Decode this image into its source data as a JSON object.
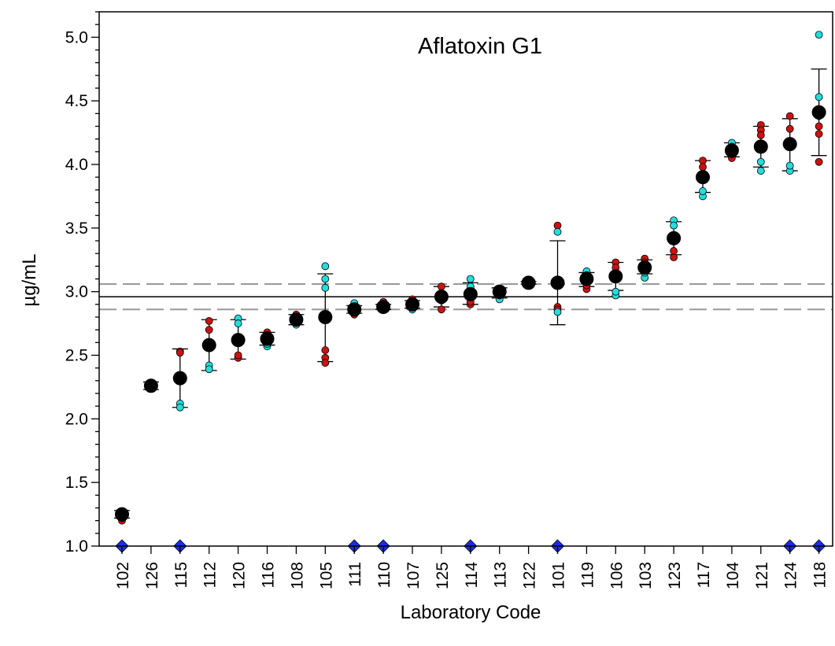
{
  "chart_data": {
    "type": "scatter",
    "title": "Aflatoxin G1",
    "xlabel": "Laboratory Code",
    "ylabel": "µg/mL",
    "ylim": [
      1.0,
      5.2
    ],
    "yticks": [
      "1.0",
      "1.5",
      "2.0",
      "2.5",
      "3.0",
      "3.5",
      "4.0",
      "4.5",
      "5.0"
    ],
    "grid": false,
    "colors": {
      "replicate_a": "#cc1111",
      "replicate_b": "#22dddd",
      "mean": "#000000",
      "flag": "#1a2cf0",
      "reference_line": "#000000",
      "reference_band": "#999999"
    },
    "reference": {
      "mean": 2.96,
      "lower": 2.86,
      "upper": 3.06
    },
    "labs": [
      {
        "code": "102",
        "mean": 1.25,
        "sd_low": 1.22,
        "sd_high": 1.28,
        "replicates_a": [
          1.2,
          1.22
        ],
        "replicates_b": [
          1.27,
          1.26
        ],
        "flagged": true
      },
      {
        "code": "126",
        "mean": 2.26,
        "sd_low": 2.23,
        "sd_high": 2.29,
        "replicates_a": [
          2.24,
          2.27
        ],
        "replicates_b": [
          2.28,
          2.25
        ],
        "flagged": false
      },
      {
        "code": "115",
        "mean": 2.32,
        "sd_low": 2.09,
        "sd_high": 2.55,
        "replicates_a": [
          2.53,
          2.52
        ],
        "replicates_b": [
          2.12,
          2.09
        ],
        "flagged": true
      },
      {
        "code": "112",
        "mean": 2.58,
        "sd_low": 2.38,
        "sd_high": 2.78,
        "replicates_a": [
          2.77,
          2.7
        ],
        "replicates_b": [
          2.42,
          2.39
        ],
        "flagged": false
      },
      {
        "code": "120",
        "mean": 2.62,
        "sd_low": 2.47,
        "sd_high": 2.78,
        "replicates_a": [
          2.48,
          2.5
        ],
        "replicates_b": [
          2.79,
          2.75
        ],
        "flagged": false
      },
      {
        "code": "116",
        "mean": 2.63,
        "sd_low": 2.58,
        "sd_high": 2.68,
        "replicates_a": [
          2.68,
          2.66
        ],
        "replicates_b": [
          2.57,
          2.59
        ],
        "flagged": false
      },
      {
        "code": "108",
        "mean": 2.78,
        "sd_low": 2.74,
        "sd_high": 2.82,
        "replicates_a": [
          2.82,
          2.8
        ],
        "replicates_b": [
          2.74,
          2.76
        ],
        "flagged": false
      },
      {
        "code": "105",
        "mean": 2.8,
        "sd_low": 2.45,
        "sd_high": 3.14,
        "replicates_a": [
          2.54,
          2.48,
          2.44
        ],
        "replicates_b": [
          3.2,
          3.1,
          3.03
        ],
        "flagged": false
      },
      {
        "code": "111",
        "mean": 2.86,
        "sd_low": 2.83,
        "sd_high": 2.89,
        "replicates_a": [
          2.82,
          2.84
        ],
        "replicates_b": [
          2.91,
          2.88
        ],
        "flagged": true
      },
      {
        "code": "110",
        "mean": 2.88,
        "sd_low": 2.86,
        "sd_high": 2.9,
        "replicates_a": [
          2.92,
          2.9
        ],
        "replicates_b": [
          2.86,
          2.87
        ],
        "flagged": true
      },
      {
        "code": "107",
        "mean": 2.9,
        "sd_low": 2.87,
        "sd_high": 2.93,
        "replicates_a": [
          2.94,
          2.92
        ],
        "replicates_b": [
          2.86,
          2.88
        ],
        "flagged": false
      },
      {
        "code": "125",
        "mean": 2.96,
        "sd_low": 2.88,
        "sd_high": 3.04,
        "replicates_a": [
          2.86,
          3.04
        ],
        "replicates_b": [
          2.99,
          2.93
        ],
        "flagged": false
      },
      {
        "code": "114",
        "mean": 2.98,
        "sd_low": 2.9,
        "sd_high": 3.07,
        "replicates_a": [
          2.9,
          2.92
        ],
        "replicates_b": [
          3.1,
          3.04
        ],
        "flagged": true
      },
      {
        "code": "113",
        "mean": 3.0,
        "sd_low": 2.95,
        "sd_high": 3.03,
        "replicates_a": [
          3.02,
          3.0
        ],
        "replicates_b": [
          2.94,
          2.97
        ],
        "flagged": false
      },
      {
        "code": "122",
        "mean": 3.07,
        "sd_low": 3.06,
        "sd_high": 3.08,
        "replicates_a": [
          3.07,
          3.06
        ],
        "replicates_b": [
          3.08,
          3.07
        ],
        "flagged": false
      },
      {
        "code": "101",
        "mean": 3.07,
        "sd_low": 2.74,
        "sd_high": 3.4,
        "replicates_a": [
          3.52,
          2.88,
          2.86
        ],
        "replicates_b": [
          3.47,
          2.84
        ],
        "flagged": true
      },
      {
        "code": "119",
        "mean": 3.1,
        "sd_low": 3.04,
        "sd_high": 3.15,
        "replicates_a": [
          3.02,
          3.05
        ],
        "replicates_b": [
          3.16,
          3.13
        ],
        "flagged": false
      },
      {
        "code": "106",
        "mean": 3.12,
        "sd_low": 3.01,
        "sd_high": 3.23,
        "replicates_a": [
          3.23,
          3.19
        ],
        "replicates_b": [
          2.97,
          3.0
        ],
        "flagged": false
      },
      {
        "code": "103",
        "mean": 3.19,
        "sd_low": 3.14,
        "sd_high": 3.25,
        "replicates_a": [
          3.26,
          3.23
        ],
        "replicates_b": [
          3.11,
          3.15
        ],
        "flagged": false
      },
      {
        "code": "123",
        "mean": 3.42,
        "sd_low": 3.29,
        "sd_high": 3.55,
        "replicates_a": [
          3.27,
          3.32
        ],
        "replicates_b": [
          3.56,
          3.52
        ],
        "flagged": false
      },
      {
        "code": "117",
        "mean": 3.9,
        "sd_low": 3.78,
        "sd_high": 4.03,
        "replicates_a": [
          4.03,
          3.98
        ],
        "replicates_b": [
          3.75,
          3.79
        ],
        "flagged": false
      },
      {
        "code": "104",
        "mean": 4.11,
        "sd_low": 4.06,
        "sd_high": 4.17,
        "replicates_a": [
          4.05,
          4.08
        ],
        "replicates_b": [
          4.17,
          4.14
        ],
        "flagged": false
      },
      {
        "code": "121",
        "mean": 4.14,
        "sd_low": 3.98,
        "sd_high": 4.3,
        "replicates_a": [
          4.31,
          4.27,
          4.23
        ],
        "replicates_b": [
          3.95,
          4.02
        ],
        "flagged": false
      },
      {
        "code": "124",
        "mean": 4.16,
        "sd_low": 3.95,
        "sd_high": 4.36,
        "replicates_a": [
          4.38,
          4.28,
          4.17
        ],
        "replicates_b": [
          3.95,
          3.99
        ],
        "flagged": true
      },
      {
        "code": "118",
        "mean": 4.41,
        "sd_low": 4.07,
        "sd_high": 4.75,
        "replicates_a": [
          4.3,
          4.24,
          4.02
        ],
        "replicates_b": [
          5.02,
          4.53,
          4.38
        ],
        "flagged": true
      }
    ]
  }
}
